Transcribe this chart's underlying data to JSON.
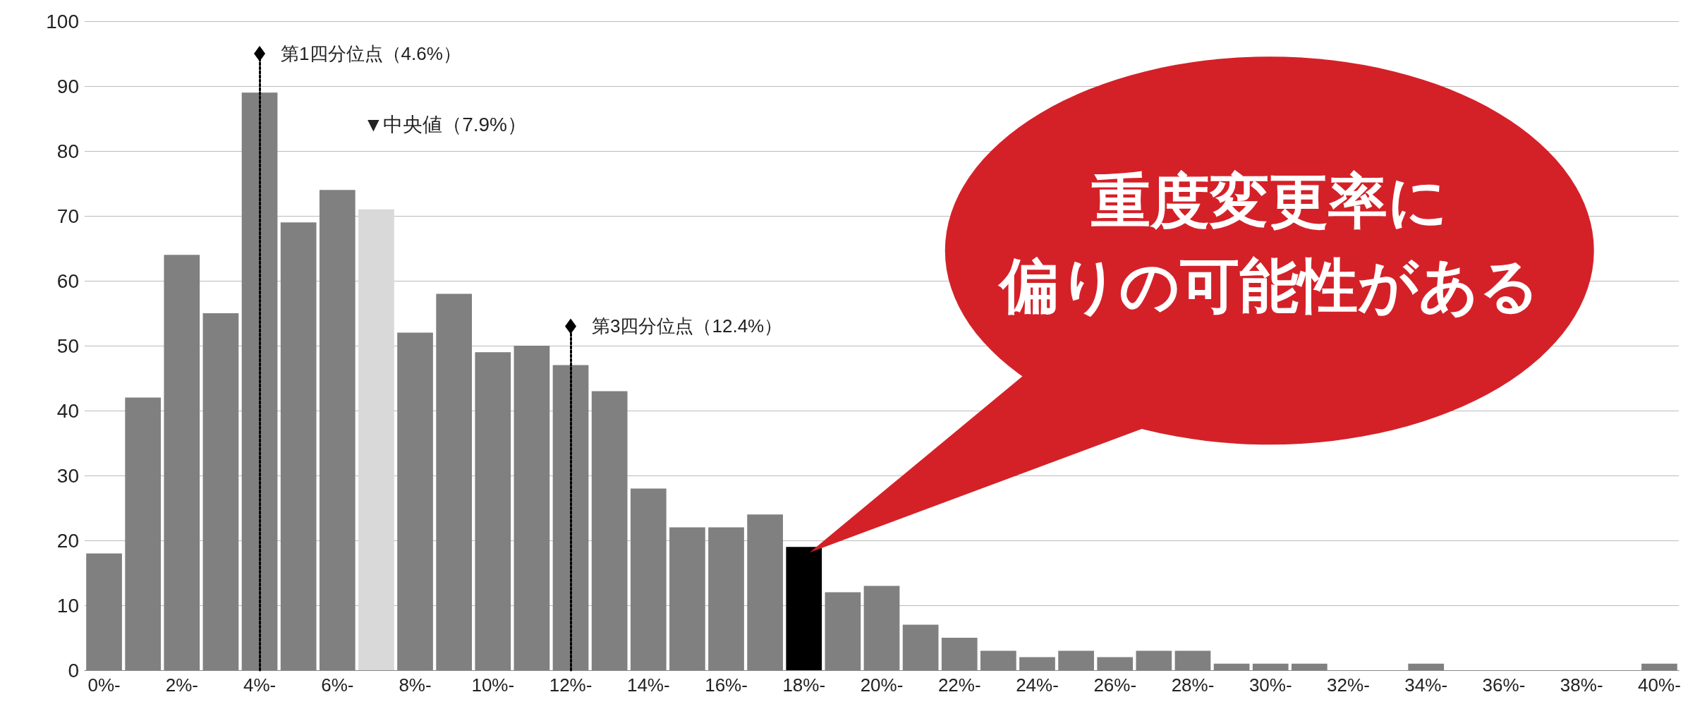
{
  "chart_data": {
    "type": "bar",
    "categories": [
      "0%-",
      null,
      "2%-",
      null,
      "4%-",
      null,
      "6%-",
      null,
      "8%-",
      null,
      "10%-",
      null,
      "12%-",
      null,
      "14%-",
      null,
      "16%-",
      null,
      "18%-",
      null,
      "20%-",
      null,
      "22%-",
      null,
      "24%-",
      null,
      "26%-",
      null,
      "28%-",
      null,
      "30%-",
      null,
      "32%-",
      null,
      "34%-",
      null,
      "36%-",
      null,
      "38%-",
      null,
      "40%-"
    ],
    "values": [
      18,
      42,
      64,
      55,
      89,
      69,
      74,
      71,
      52,
      58,
      49,
      50,
      47,
      43,
      28,
      22,
      22,
      24,
      19,
      12,
      13,
      7,
      5,
      3,
      2,
      3,
      2,
      3,
      3,
      1,
      1,
      1,
      0,
      0,
      1,
      0,
      0,
      0,
      0,
      0,
      1
    ],
    "colors": [
      "#808080",
      "#808080",
      "#808080",
      "#808080",
      "#808080",
      "#808080",
      "#808080",
      "#d9d9d9",
      "#808080",
      "#808080",
      "#808080",
      "#808080",
      "#808080",
      "#808080",
      "#808080",
      "#808080",
      "#808080",
      "#808080",
      "#000000",
      "#808080",
      "#808080",
      "#808080",
      "#808080",
      "#808080",
      "#808080",
      "#808080",
      "#808080",
      "#808080",
      "#808080",
      "#808080",
      "#808080",
      "#808080",
      "#808080",
      "#808080",
      "#808080",
      "#808080",
      "#808080",
      "#808080",
      "#808080",
      "#808080",
      "#808080"
    ],
    "ylim": [
      0,
      100
    ],
    "yticks": [
      0,
      10,
      20,
      30,
      40,
      50,
      60,
      70,
      80,
      90,
      100
    ],
    "grid": "y",
    "ref_lines": [
      {
        "axis": "x",
        "value": "4%-",
        "label": "第1四分位点（4.6%）",
        "color": "#000000",
        "line_style": "dotted"
      },
      {
        "axis": "x",
        "value": "12%-",
        "label": "第3四分位点（12.4%）",
        "color": "#000000",
        "line_style": "dotted"
      }
    ],
    "annotations": [
      "▼中央値（7.9%）",
      "重度変更率に偏りの可能性がある"
    ]
  }
}
